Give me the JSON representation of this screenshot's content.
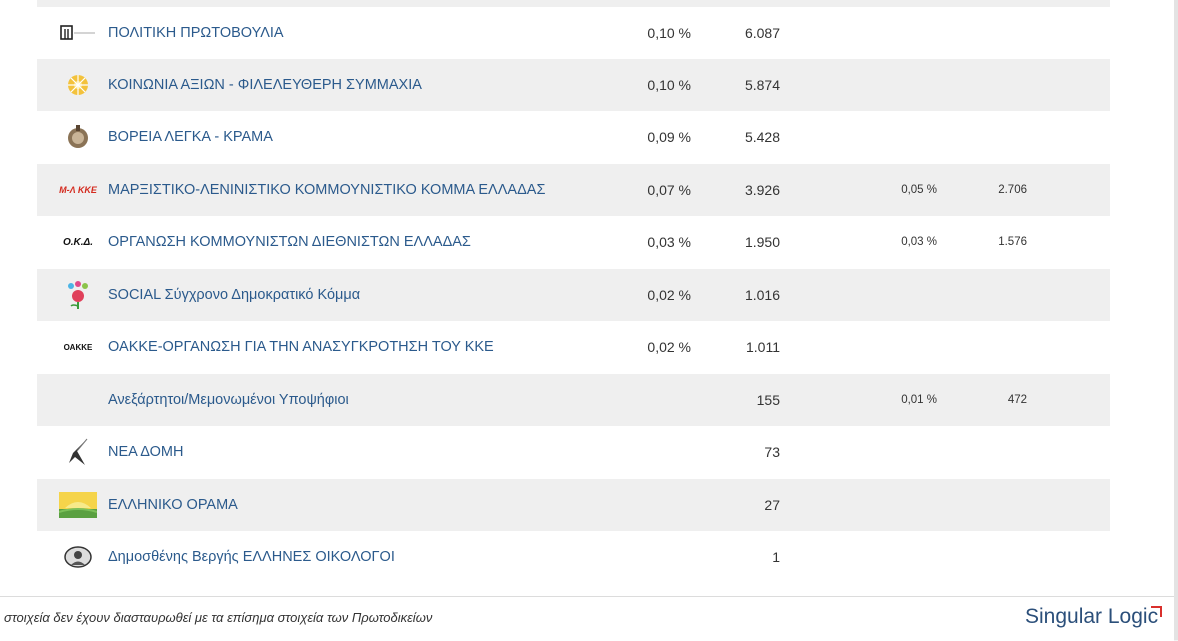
{
  "rows": [
    {
      "logo": "ΠΠ-logo-icon",
      "name": "ΠΟΛΙΤΙΚΗ ΠΡΩΤΟΒΟΥΛΙΑ",
      "pct": "0,10 %",
      "votes": "6.087",
      "pct2": "",
      "votes2": ""
    },
    {
      "logo": "flower-logo-icon",
      "name": "ΚΟΙΝΩΝΙΑ ΑΞΙΩΝ - ΦΙΛΕΛΕΥΘΕΡΗ ΣΥΜΜΑΧΙΑ",
      "pct": "0,10 %",
      "votes": "5.874",
      "pct2": "",
      "votes2": ""
    },
    {
      "logo": "emblem-logo-icon",
      "name": "ΒΟΡΕΙΑ ΛΕΓΚΑ - ΚΡΑΜΑ",
      "pct": "0,09 %",
      "votes": "5.428",
      "pct2": "",
      "votes2": ""
    },
    {
      "logo": "mlkke-logo-icon",
      "logo_text": "Μ-Λ ΚΚΕ",
      "name": "ΜΑΡΞΙΣΤΙΚΟ-ΛΕΝΙΝΙΣΤΙΚΟ ΚΟΜΜΟΥΝΙΣΤΙΚΟ ΚΟΜΜΑ ΕΛΛΑΔΑΣ",
      "pct": "0,07 %",
      "votes": "3.926",
      "pct2": "0,05 %",
      "votes2": "2.706"
    },
    {
      "logo": "okd-logo-icon",
      "logo_text": "Ο.Κ.Δ.",
      "name": "ΟΡΓΑΝΩΣΗ ΚΟΜΜΟΥΝΙΣΤΩΝ ΔΙΕΘΝΙΣΤΩΝ ΕΛΛΑΔΑΣ",
      "pct": "0,03 %",
      "votes": "1.950",
      "pct2": "0,03 %",
      "votes2": "1.576"
    },
    {
      "logo": "social-logo-icon",
      "name": "SOCIAL Σύγχρονο Δημοκρατικό Κόμμα",
      "pct": "0,02 %",
      "votes": "1.016",
      "pct2": "",
      "votes2": ""
    },
    {
      "logo": "oakke-logo-icon",
      "logo_text": "ΟΑΚΚΕ",
      "name": "ΟΑΚΚΕ-ΟΡΓΑΝΩΣΗ ΓΙΑ ΤΗΝ ΑΝΑΣΥΓΚΡΟΤΗΣΗ ΤΟΥ ΚΚΕ",
      "pct": "0,02 %",
      "votes": "1.011",
      "pct2": "",
      "votes2": ""
    },
    {
      "logo": "",
      "name": "Ανεξάρτητοι/Μεμονωμένοι Υποψήφιοι",
      "pct": "",
      "votes": "155",
      "pct2": "0,01 %",
      "votes2": "472"
    },
    {
      "logo": "bird-logo-icon",
      "name": "ΝΕΑ ΔΟΜΗ",
      "pct": "",
      "votes": "73",
      "pct2": "",
      "votes2": ""
    },
    {
      "logo": "sun-logo-icon",
      "name": "ΕΛΛΗΝΙΚΟ ΟΡΑΜΑ",
      "pct": "",
      "votes": "27",
      "pct2": "",
      "votes2": ""
    },
    {
      "logo": "portrait-logo-icon",
      "name": "Δημοσθένης Βεργής ΕΛΛΗΝΕΣ ΟΙΚΟΛΟΓΟΙ",
      "pct": "",
      "votes": "1",
      "pct2": "",
      "votes2": ""
    }
  ],
  "footer": {
    "note": "στοιχεία δεν έχουν διασταυρωθεί με τα επίσημα στοιχεία των Πρωτοδικείων",
    "brand": "Singular Logic"
  },
  "colors": {
    "link": "#2b5a8c",
    "stripe": "#efefef",
    "brand_mark": "#d9302c"
  }
}
